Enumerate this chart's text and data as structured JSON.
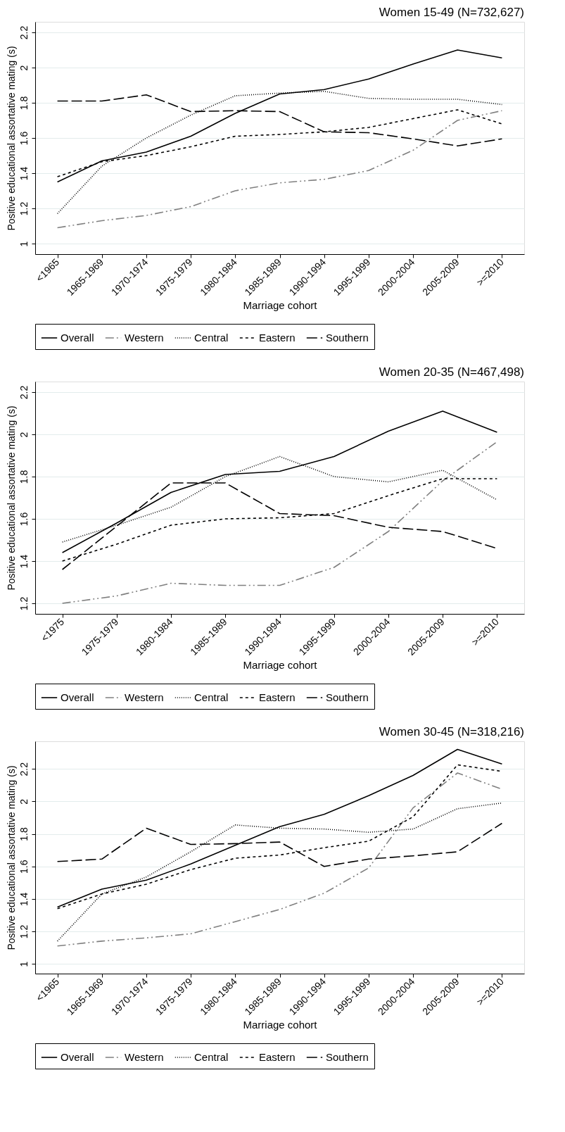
{
  "chart_data": [
    {
      "type": "line",
      "title": "Women 15-49 (N=732,627)",
      "xlabel": "Marriage cohort",
      "ylabel": "Positive educational assortative mating (s)",
      "categories": [
        "<1965",
        "1965-1969",
        "1970-1974",
        "1975-1979",
        "1980-1984",
        "1985-1989",
        "1990-1994",
        "1995-1999",
        "2000-2004",
        "2005-2009",
        ">=2010"
      ],
      "ylim": [
        0.94,
        2.26
      ],
      "yticks": [
        1,
        1.2,
        1.4,
        1.6,
        1.8,
        2,
        2.2
      ],
      "grid": "y",
      "legend": "bottom",
      "marker": "none",
      "series": [
        {
          "name": "Overall",
          "color": "#000000",
          "line_style": "solid",
          "values": [
            1.35,
            1.47,
            1.52,
            1.61,
            1.74,
            1.85,
            1.875,
            1.935,
            2.02,
            2.1,
            2.055
          ]
        },
        {
          "name": "Western",
          "color": "#808080",
          "line_style": "dashdotdot",
          "values": [
            1.09,
            1.13,
            1.16,
            1.21,
            1.3,
            1.345,
            1.365,
            1.415,
            1.53,
            1.7,
            1.755
          ]
        },
        {
          "name": "Central",
          "color": "#000000",
          "line_style": "dotted",
          "values": [
            1.17,
            1.44,
            1.6,
            1.73,
            1.84,
            1.855,
            1.865,
            1.825,
            1.82,
            1.82,
            1.79
          ]
        },
        {
          "name": "Eastern",
          "color": "#000000",
          "line_style": "dashed",
          "values": [
            1.38,
            1.465,
            1.5,
            1.55,
            1.61,
            1.62,
            1.635,
            1.66,
            1.71,
            1.76,
            1.68
          ]
        },
        {
          "name": "Southern",
          "color": "#000000",
          "line_style": "longdashed",
          "values": [
            1.81,
            1.81,
            1.845,
            1.75,
            1.755,
            1.75,
            1.635,
            1.63,
            1.595,
            1.555,
            1.595
          ]
        }
      ]
    },
    {
      "type": "line",
      "title": "Women 20-35 (N=467,498)",
      "xlabel": "Marriage cohort",
      "ylabel": "Positive educational assortative mating (s)",
      "categories": [
        "<1975",
        "1975-1979",
        "1980-1984",
        "1985-1989",
        "1990-1994",
        "1995-1999",
        "2000-2004",
        "2005-2009",
        ">=2010"
      ],
      "ylim": [
        1.15,
        2.25
      ],
      "yticks": [
        1.2,
        1.4,
        1.6,
        1.8,
        2,
        2.2
      ],
      "grid": "y",
      "legend": "bottom",
      "marker": "none",
      "series": [
        {
          "name": "Overall",
          "color": "#000000",
          "line_style": "solid",
          "values": [
            1.44,
            1.58,
            1.725,
            1.81,
            1.825,
            1.895,
            2.015,
            2.11,
            2.01
          ]
        },
        {
          "name": "Western",
          "color": "#808080",
          "line_style": "dashdotdot",
          "values": [
            1.2,
            1.235,
            1.295,
            1.285,
            1.285,
            1.37,
            1.54,
            1.78,
            1.965
          ]
        },
        {
          "name": "Central",
          "color": "#000000",
          "line_style": "dotted",
          "values": [
            1.49,
            1.57,
            1.655,
            1.8,
            1.895,
            1.8,
            1.775,
            1.83,
            1.69
          ]
        },
        {
          "name": "Eastern",
          "color": "#000000",
          "line_style": "dashed",
          "values": [
            1.4,
            1.48,
            1.57,
            1.6,
            1.605,
            1.625,
            1.71,
            1.79,
            1.79
          ]
        },
        {
          "name": "Southern",
          "color": "#000000",
          "line_style": "longdashed",
          "values": [
            1.36,
            1.565,
            1.77,
            1.77,
            1.625,
            1.615,
            1.56,
            1.54,
            1.46
          ]
        }
      ]
    },
    {
      "type": "line",
      "title": "Women 30-45 (N=318,216)",
      "xlabel": "Marriage cohort",
      "ylabel": "Positive educational assortative mating (s)",
      "categories": [
        "<1965",
        "1965-1969",
        "1970-1974",
        "1975-1979",
        "1980-1984",
        "1985-1989",
        "1990-1994",
        "1995-1999",
        "2000-2004",
        "2005-2009",
        ">=2010"
      ],
      "ylim": [
        0.94,
        2.37
      ],
      "yticks": [
        1,
        1.2,
        1.4,
        1.6,
        1.8,
        2,
        2.2
      ],
      "grid": "y",
      "legend": "bottom",
      "marker": "none",
      "series": [
        {
          "name": "Overall",
          "color": "#000000",
          "line_style": "solid",
          "values": [
            1.35,
            1.46,
            1.515,
            1.615,
            1.73,
            1.845,
            1.92,
            2.035,
            2.16,
            2.32,
            2.23
          ]
        },
        {
          "name": "Western",
          "color": "#808080",
          "line_style": "dashdotdot",
          "values": [
            1.11,
            1.14,
            1.16,
            1.185,
            1.26,
            1.335,
            1.435,
            1.59,
            1.96,
            2.175,
            2.075
          ]
        },
        {
          "name": "Central",
          "color": "#000000",
          "line_style": "dotted",
          "values": [
            1.14,
            1.43,
            1.535,
            1.69,
            1.855,
            1.835,
            1.83,
            1.81,
            1.83,
            1.955,
            1.99
          ]
        },
        {
          "name": "Eastern",
          "color": "#000000",
          "line_style": "dashed",
          "values": [
            1.34,
            1.43,
            1.49,
            1.58,
            1.65,
            1.67,
            1.715,
            1.755,
            1.905,
            2.225,
            2.185
          ]
        },
        {
          "name": "Southern",
          "color": "#000000",
          "line_style": "longdashed",
          "values": [
            1.63,
            1.645,
            1.835,
            1.735,
            1.74,
            1.75,
            1.6,
            1.645,
            1.665,
            1.69,
            1.865
          ]
        }
      ]
    }
  ]
}
